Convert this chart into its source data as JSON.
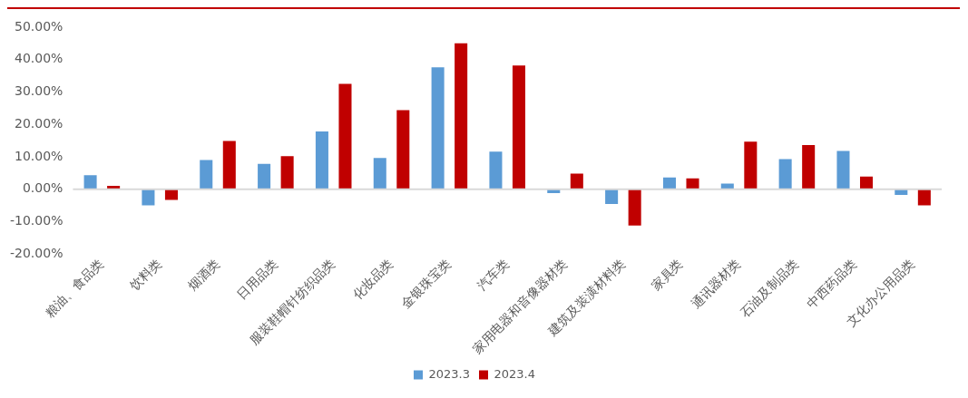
{
  "chart_data": {
    "type": "bar",
    "categories": [
      "粮油、食品类",
      "饮料类",
      "烟酒类",
      "日用品类",
      "服装鞋帽针纺织品类",
      "化妆品类",
      "金银珠宝类",
      "汽车类",
      "家用电器和音像器材类",
      "建筑及装潢材料类",
      "家具类",
      "通讯器材类",
      "石油及制品类",
      "中西药品类",
      "文化办公用品类"
    ],
    "series": [
      {
        "name": "2023.3",
        "color": "#5b9bd5",
        "values": [
          4.3,
          -5.0,
          9.0,
          7.8,
          17.8,
          9.6,
          37.6,
          11.6,
          -1.2,
          -4.6,
          3.6,
          1.7,
          9.3,
          11.8,
          -1.8
        ]
      },
      {
        "name": "2023.4",
        "color": "#c00000",
        "values": [
          1.0,
          -3.3,
          14.9,
          10.2,
          32.5,
          24.4,
          45.0,
          38.2,
          4.8,
          -11.2,
          3.3,
          14.7,
          13.6,
          3.9,
          -5.0
        ]
      }
    ],
    "ylim": [
      -20,
      50
    ],
    "yticks": [
      {
        "value": -20,
        "label": "-20.00%"
      },
      {
        "value": -10,
        "label": "-10.00%"
      },
      {
        "value": 0,
        "label": "0.00%"
      },
      {
        "value": 10,
        "label": "10.00%"
      },
      {
        "value": 20,
        "label": "20.00%"
      },
      {
        "value": 30,
        "label": "30.00%"
      },
      {
        "value": 40,
        "label": "40.00%"
      },
      {
        "value": 50,
        "label": "50.00%"
      }
    ],
    "ref_lines": [
      {
        "axis": "y",
        "value": 0,
        "color": "#d9d9d9"
      }
    ],
    "grid": false,
    "legend": "bottom"
  }
}
